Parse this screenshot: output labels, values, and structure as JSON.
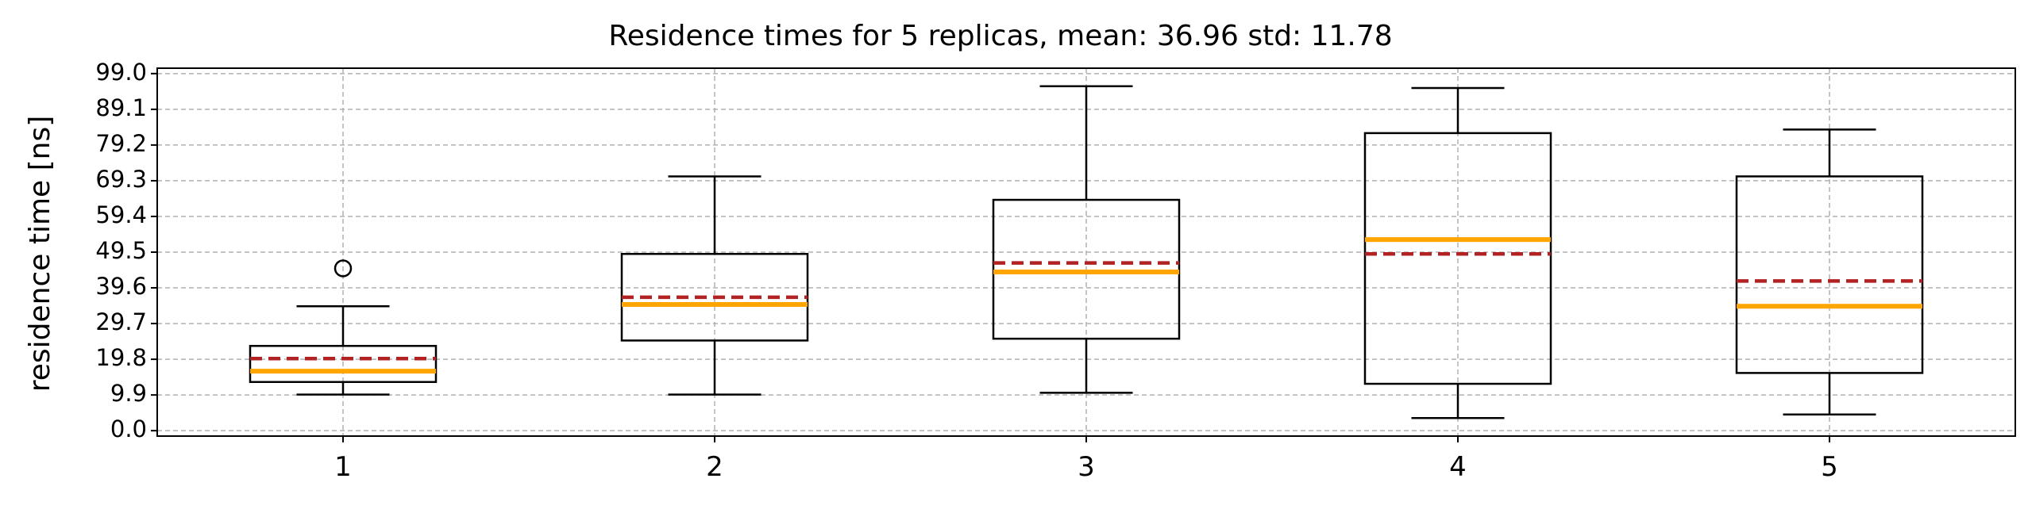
{
  "chart_data": {
    "type": "box",
    "title": "Residence times for 5 replicas, mean: 36.96  std: 11.78",
    "xlabel": "",
    "ylabel": "residence time [ns]",
    "categories": [
      "1",
      "2",
      "3",
      "4",
      "5"
    ],
    "yticks": [
      "0.0",
      "9.9",
      "19.8",
      "29.7",
      "39.6",
      "49.5",
      "59.4",
      "69.3",
      "79.2",
      "89.1",
      "99.0"
    ],
    "ylim": [
      -1.5,
      100.5
    ],
    "xlim": [
      0.5,
      5.5
    ],
    "grid": true,
    "boxes": [
      {
        "label": "1",
        "whisker_low": 10.0,
        "q1": 13.5,
        "median": 16.5,
        "mean": 20.0,
        "q3": 23.5,
        "whisker_high": 34.5,
        "outliers": [
          45.0
        ]
      },
      {
        "label": "2",
        "whisker_low": 10.0,
        "q1": 25.0,
        "median": 35.0,
        "mean": 37.0,
        "q3": 49.0,
        "whisker_high": 70.5,
        "outliers": []
      },
      {
        "label": "3",
        "whisker_low": 10.5,
        "q1": 25.5,
        "median": 44.0,
        "mean": 46.5,
        "q3": 64.0,
        "whisker_high": 95.5,
        "outliers": []
      },
      {
        "label": "4",
        "whisker_low": 3.5,
        "q1": 13.0,
        "median": 53.0,
        "mean": 49.0,
        "q3": 82.5,
        "whisker_high": 95.0,
        "outliers": []
      },
      {
        "label": "5",
        "whisker_low": 4.5,
        "q1": 16.0,
        "median": 34.5,
        "mean": 41.5,
        "q3": 70.5,
        "whisker_high": 83.5,
        "outliers": []
      }
    ],
    "colors": {
      "box": "#000000",
      "median": "#ffa500",
      "mean": "#b22222",
      "grid": "#b0b0b0"
    }
  }
}
